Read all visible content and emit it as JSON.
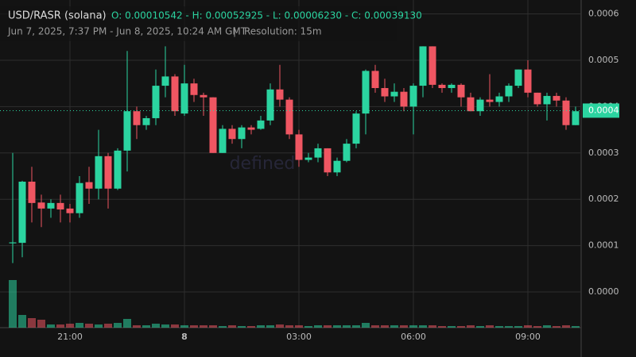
{
  "chart_data": {
    "type": "candlestick",
    "title": "USD/RASR (solana)",
    "ohlc_summary": "O: 0.00010542 - H: 0.00052925 - L: 0.00006230 - C: 0.00039130",
    "subtitle": "Jun 7, 2025, 7:37 PM - Jun 8, 2025, 10:24 AM GMT",
    "separator": "|",
    "resolution": "Resolution: 15m",
    "watermark": "defined",
    "categories": [
      null,
      null,
      null,
      null,
      null,
      null,
      "21:00",
      null,
      null,
      null,
      null,
      null,
      null,
      null,
      null,
      null,
      null,
      null,
      "8",
      null,
      null,
      null,
      null,
      null,
      null,
      null,
      null,
      null,
      null,
      null,
      "03:00",
      null,
      null,
      null,
      null,
      null,
      null,
      null,
      null,
      null,
      null,
      null,
      "06:00",
      null,
      null,
      null,
      null,
      null,
      null,
      null,
      null,
      null,
      null,
      null,
      "09:00",
      null,
      null,
      null,
      null,
      null
    ],
    "open": [
      0.000105,
      0.000106,
      0.000238,
      0.000193,
      0.00018,
      0.000192,
      0.00018,
      0.00017,
      0.000237,
      0.000223,
      0.000293,
      0.000223,
      0.000305,
      0.00039,
      0.00036,
      0.000375,
      0.000445,
      0.000465,
      0.000385,
      0.00045,
      0.000425,
      0.00042,
      0.0003,
      0.000352,
      0.00033,
      0.000355,
      0.000352,
      0.00037,
      0.000437,
      0.000415,
      0.00034,
      0.000285,
      0.00029,
      0.00031,
      0.000258,
      0.000283,
      0.00032,
      0.000385,
      0.000477,
      0.00044,
      0.000422,
      0.000432,
      0.0004,
      0.000445,
      0.00053,
      0.000447,
      0.00044,
      0.000447,
      0.00042,
      0.00039,
      0.000415,
      0.00041,
      0.000422,
      0.000445,
      0.00048,
      0.00043,
      0.000405,
      0.000423,
      0.000413,
      0.00036
    ],
    "high": [
      0.0003,
      0.00024,
      0.00027,
      0.00021,
      0.0002,
      0.00021,
      0.00019,
      0.00025,
      0.00027,
      0.00035,
      0.0003,
      0.00031,
      0.00052,
      0.0004,
      0.00038,
      0.00048,
      0.00053,
      0.00047,
      0.00049,
      0.00046,
      0.00043,
      0.00042,
      0.00036,
      0.00036,
      0.00036,
      0.00036,
      0.00038,
      0.00045,
      0.00049,
      0.00042,
      0.00035,
      0.0003,
      0.00032,
      0.00031,
      0.00029,
      0.00033,
      0.00039,
      0.00048,
      0.00049,
      0.00046,
      0.00045,
      0.00044,
      0.00045,
      0.00053,
      0.00053,
      0.00045,
      0.00045,
      0.00045,
      0.00043,
      0.00042,
      0.00047,
      0.00043,
      0.00045,
      0.00048,
      0.0005,
      0.00043,
      0.00043,
      0.00043,
      0.00042,
      0.0004
    ],
    "low": [
      6.23e-05,
      7.5e-05,
      0.00015,
      0.00014,
      0.00016,
      0.00015,
      0.00015,
      0.00016,
      0.00019,
      0.0002,
      0.00018,
      0.00022,
      0.00026,
      0.00033,
      0.00035,
      0.00036,
      0.00042,
      0.00038,
      0.00038,
      0.00041,
      0.00038,
      0.0003,
      0.0003,
      0.00032,
      0.00031,
      0.00034,
      0.00035,
      0.00036,
      0.0004,
      0.00033,
      0.00027,
      0.00028,
      0.00028,
      0.00025,
      0.00025,
      0.00028,
      0.00031,
      0.00034,
      0.00043,
      0.00041,
      0.00041,
      0.00039,
      0.00034,
      0.00042,
      0.00044,
      0.00043,
      0.00043,
      0.0004,
      0.00039,
      0.00038,
      0.0004,
      0.0004,
      0.00041,
      0.00044,
      0.00042,
      0.0004,
      0.00037,
      0.0004,
      0.00035,
      0.00036
    ],
    "close": [
      0.000107,
      0.000238,
      0.000192,
      0.00018,
      0.000192,
      0.000178,
      0.00017,
      0.000235,
      0.000223,
      0.000293,
      0.000223,
      0.000305,
      0.00039,
      0.00036,
      0.000375,
      0.000445,
      0.000465,
      0.00039,
      0.00045,
      0.000425,
      0.00042,
      0.0003,
      0.000352,
      0.00033,
      0.000355,
      0.00035,
      0.00037,
      0.000437,
      0.000415,
      0.00034,
      0.000285,
      0.00029,
      0.00031,
      0.000258,
      0.000283,
      0.00032,
      0.000385,
      0.000477,
      0.00044,
      0.000422,
      0.000432,
      0.0004,
      0.000445,
      0.00053,
      0.000447,
      0.00044,
      0.000447,
      0.00042,
      0.00039,
      0.000415,
      0.00041,
      0.000422,
      0.000445,
      0.00048,
      0.00043,
      0.000405,
      0.000423,
      0.000413,
      0.00036,
      0.00039
    ],
    "volume": [
      60,
      16,
      12,
      10,
      4,
      4,
      5,
      6,
      5,
      4,
      5,
      6,
      11,
      3,
      3,
      5,
      4,
      4,
      3,
      3,
      3,
      3,
      2,
      3,
      2,
      2,
      3,
      3,
      4,
      3,
      3,
      2,
      3,
      3,
      3,
      3,
      3,
      6,
      3,
      3,
      3,
      3,
      3,
      3,
      3,
      2,
      2,
      2,
      3,
      2,
      3,
      2,
      2,
      2,
      3,
      2,
      3,
      2,
      3,
      2
    ],
    "up_color": "#2bd4a0",
    "down_color": "#ef5662",
    "ylim": [
      -7.7e-05,
      0.00063
    ],
    "yticks": [
      {
        "value": 0,
        "label": "0.0000"
      },
      0.0001,
      0.0002,
      0.0003,
      0.0004,
      0.0005,
      0.0006
    ],
    "last_price": {
      "value": 0.0003913,
      "label": "0.0004"
    },
    "grid": true
  }
}
